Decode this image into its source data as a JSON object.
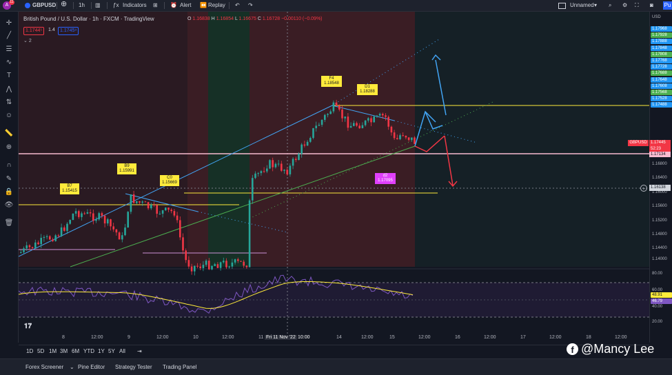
{
  "topbar": {
    "avatar_letter": "A",
    "notifications": "11",
    "symbol": "GBPUSD",
    "add_icon": "plus-circle-icon",
    "interval": "1h",
    "indicators_label": "Indicators",
    "alert_label": "Alert",
    "replay_label": "Replay",
    "layout_name": "Unnamed",
    "publish": "Pu"
  },
  "legend": {
    "title": "British Pound / U.S. Dollar · 1h · FXCM · TradingView",
    "o_key": "O",
    "o_val": "1.16838",
    "h_key": "H",
    "h_val": "1.16854",
    "l_key": "L",
    "l_val": "1.16675",
    "c_key": "C",
    "c_val": "1.16728",
    "change": "−0.00110 (−0.09%)",
    "sell_price": "1.1744⁵",
    "spread": "1.4",
    "buy_price": "1.1745⁹",
    "indicator_count": "2"
  },
  "price_scale": {
    "currency": "USD",
    "labels": [
      "1.17968",
      "1.17928",
      "1.17888",
      "1.17848",
      "1.17808",
      "1.17768",
      "1.17728",
      "1.17688",
      "1.17648",
      "1.17608",
      "1.17568",
      "1.17528",
      "1.17488",
      "1.16800",
      "1.16400",
      "1.16000",
      "1.15600",
      "1.15200",
      "1.14800",
      "1.14400",
      "1.14000"
    ],
    "green_tags": [
      "1.17968",
      "1.17928",
      "1.17888",
      "1.17848",
      "1.17808",
      "1.17768",
      "1.17728",
      "1.17688",
      "1.17648",
      "1.17608",
      "1.17568",
      "1.17528",
      "1.17488"
    ],
    "current_symbol": "GBPUSD",
    "current_price": "1.17445",
    "countdown": "52:23",
    "pink_line_price": "1.17134",
    "crosshair_price": "1.16138",
    "rsi_labels": [
      "80.00",
      "60.00",
      "40.00",
      "20.00"
    ],
    "rsi_tag_yellow": "48.91",
    "rsi_tag_purple": "46.79"
  },
  "annotations": {
    "b7": {
      "name": "B7",
      "price": "1.15415"
    },
    "b9": {
      "name": "B9",
      "price": "1.15991"
    },
    "c0": {
      "name": "C0",
      "price": "1.15669"
    },
    "f4": {
      "name": "F4",
      "price": "1.18548"
    },
    "d1": {
      "name": "D1",
      "price": "1.18288"
    },
    "d2": {
      "name": "d2",
      "price": "1.17095"
    }
  },
  "time_axis": [
    "8",
    "12:00",
    "9",
    "12:00",
    "10",
    "12:00",
    "11",
    "Fri 11 Nov '22",
    "10:00",
    "14",
    "12:00",
    "15",
    "12:00",
    "16",
    "12:00",
    "17",
    "12:00",
    "18",
    "12:00"
  ],
  "range_buttons": [
    "1D",
    "5D",
    "1M",
    "3M",
    "6M",
    "YTD",
    "1Y",
    "5Y",
    "All"
  ],
  "bottom_tabs": [
    "Forex Screener",
    "Pine Editor",
    "Strategy Tester",
    "Trading Panel"
  ],
  "watermark": "@Mancy Lee",
  "colors": {
    "up": "#26a69a",
    "down": "#f23645",
    "bg": "#131722",
    "yellow": "#ffeb3b",
    "pink": "#f8bbd0",
    "blue": "#42a5f5",
    "green_line": "#4caf50"
  }
}
